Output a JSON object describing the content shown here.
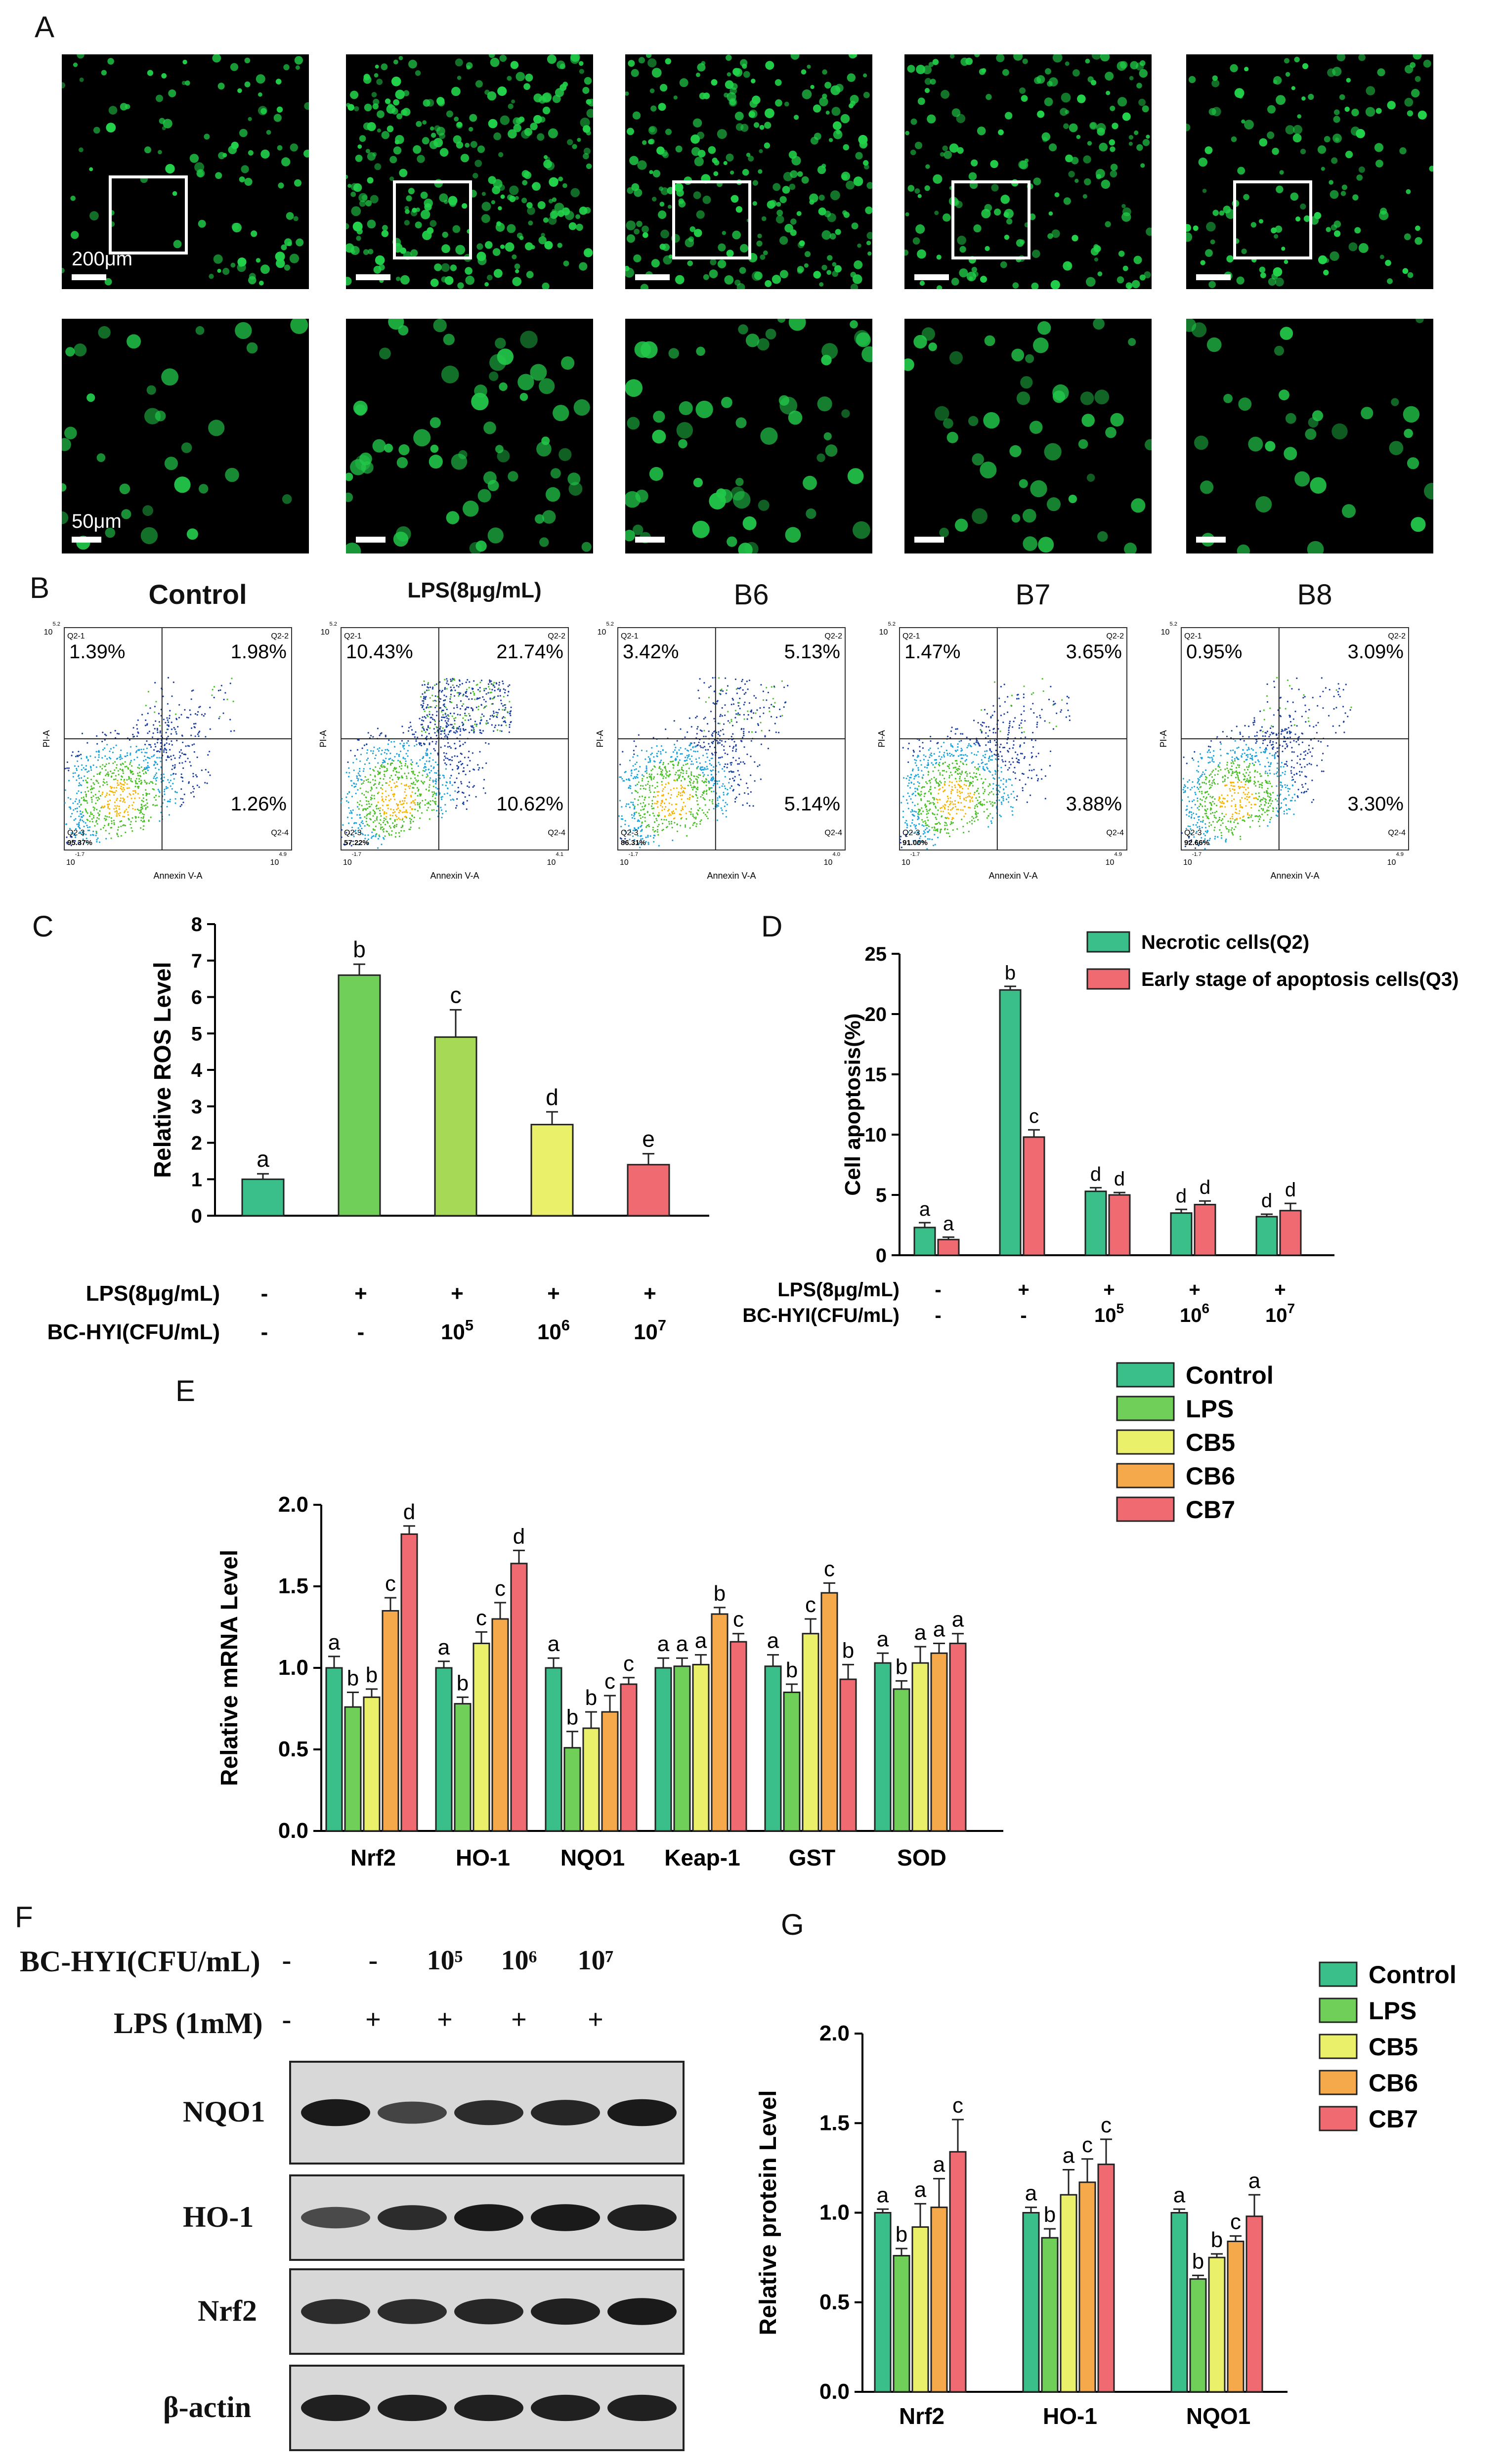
{
  "panels": {
    "A": "A",
    "B": "B",
    "C": "C",
    "D": "D",
    "E": "E",
    "F": "F",
    "G": "G"
  },
  "panelA": {
    "scale_top": "200μm",
    "scale_bottom": "50μm",
    "top_intensity": [
      0.25,
      1.0,
      0.85,
      0.6,
      0.4
    ],
    "bottom_intensity": [
      0.3,
      0.9,
      0.8,
      0.6,
      0.35
    ]
  },
  "panelB": {
    "titles": [
      "Control",
      "LPS(8μg/mL)",
      "B6",
      "B7",
      "B8"
    ],
    "quadrant_labels": {
      "q1": "Q2-1",
      "q2": "Q2-2",
      "q3": "Q2-3",
      "q4": "Q2-4"
    },
    "x_axis_label": "Annexin V-A",
    "y_axis_label": "PI-A",
    "plots": [
      {
        "q1": "1.39%",
        "q2": "1.98%",
        "q4": "1.26%",
        "q3": "95.37%",
        "xmax": "10^4.9",
        "ymax": "10^5.2"
      },
      {
        "q1": "10.43%",
        "q2": "21.74%",
        "q4": "10.62%",
        "q3": "57.22%",
        "xmax": "10^4.1",
        "ymax": "10^5.2"
      },
      {
        "q1": "3.42%",
        "q2": "5.13%",
        "q4": "5.14%",
        "q3": "86.31%",
        "xmax": "10^4.0",
        "ymax": "10^5.2"
      },
      {
        "q1": "1.47%",
        "q2": "3.65%",
        "q4": "3.88%",
        "q3": "91.00%",
        "xmax": "10^4.9",
        "ymax": "10^5.2"
      },
      {
        "q1": "0.95%",
        "q2": "3.09%",
        "q4": "3.30%",
        "q3": "92.66%",
        "xmax": "10^4.9",
        "ymax": "10^5.2"
      }
    ]
  },
  "chart_data": [
    {
      "id": "C",
      "type": "bar",
      "ylabel": "Relative ROS Level",
      "ylim": [
        0,
        8
      ],
      "yticks": [
        0,
        1,
        2,
        3,
        4,
        5,
        6,
        7,
        8
      ],
      "values": [
        1.0,
        6.6,
        4.9,
        2.5,
        1.4
      ],
      "errors": [
        0.15,
        0.3,
        0.75,
        0.35,
        0.3
      ],
      "letters": [
        "a",
        "b",
        "c",
        "d",
        "e"
      ],
      "colors": [
        "#3bbf8a",
        "#6fcf58",
        "#a6d955",
        "#eaf06a",
        "#f06a72"
      ],
      "row1_label": "LPS(8μg/mL)",
      "row1": [
        "-",
        "+",
        "+",
        "+",
        "+"
      ],
      "row2_label": "BC-HYI(CFU/mL)",
      "row2": [
        "-",
        "-",
        "10^5",
        "10^6",
        "10^7"
      ]
    },
    {
      "id": "D",
      "type": "bar",
      "ylabel": "Cell apoptosis(%)",
      "ylim": [
        0,
        25
      ],
      "yticks": [
        0,
        5,
        10,
        15,
        20,
        25
      ],
      "series": [
        {
          "name": "Necrotic  cells(Q2)",
          "color": "#3bbf8a",
          "values": [
            2.3,
            22.0,
            5.3,
            3.5,
            3.2
          ],
          "errors": [
            0.4,
            0.3,
            0.3,
            0.3,
            0.2
          ],
          "letters": [
            "a",
            "b",
            "d",
            "d",
            "d"
          ]
        },
        {
          "name": "Early stage of apoptosis cells(Q3)",
          "color": "#f06a72",
          "values": [
            1.3,
            9.8,
            5.0,
            4.2,
            3.7
          ],
          "errors": [
            0.2,
            0.6,
            0.2,
            0.3,
            0.6
          ],
          "letters": [
            "a",
            "c",
            "d",
            "d",
            "d"
          ]
        }
      ],
      "row1_label": "LPS(8μg/mL)",
      "row1": [
        "-",
        "+",
        "+",
        "+",
        "+"
      ],
      "row2_label": "BC-HYI(CFU/mL)",
      "row2": [
        "-",
        "-",
        "10^5",
        "10^6",
        "10^7"
      ]
    },
    {
      "id": "E",
      "type": "bar",
      "ylabel": "Relative mRNA Level",
      "ylim": [
        0,
        2.0
      ],
      "yticks": [
        "0.0",
        "0.5",
        "1.0",
        "1.5",
        "2.0"
      ],
      "categories": [
        "Nrf2",
        "HO-1",
        "NQO1",
        "Keap-1",
        "GST",
        "SOD"
      ],
      "series": [
        {
          "name": "Control",
          "color": "#3bbf8a",
          "values": [
            1.0,
            1.0,
            1.0,
            1.0,
            1.01,
            1.03
          ],
          "errors": [
            0.07,
            0.04,
            0.06,
            0.06,
            0.07,
            0.06
          ],
          "letters": [
            "a",
            "a",
            "a",
            "a",
            "a",
            "a"
          ]
        },
        {
          "name": "LPS",
          "color": "#6fcf58",
          "values": [
            0.76,
            0.78,
            0.51,
            1.01,
            0.85,
            0.87
          ],
          "errors": [
            0.09,
            0.04,
            0.1,
            0.05,
            0.05,
            0.05
          ],
          "letters": [
            "b",
            "b",
            "b",
            "a",
            "b",
            "b"
          ]
        },
        {
          "name": "CB5",
          "color": "#eaf06a",
          "values": [
            0.82,
            1.15,
            0.63,
            1.02,
            1.21,
            1.03
          ],
          "errors": [
            0.05,
            0.07,
            0.1,
            0.06,
            0.09,
            0.1
          ],
          "letters": [
            "b",
            "c",
            "b",
            "a",
            "c",
            "a"
          ]
        },
        {
          "name": "CB6",
          "color": "#f5a94a",
          "values": [
            1.35,
            1.3,
            0.73,
            1.33,
            1.46,
            1.09
          ],
          "errors": [
            0.08,
            0.1,
            0.1,
            0.04,
            0.06,
            0.06
          ],
          "letters": [
            "c",
            "c",
            "c",
            "b",
            "c",
            "a"
          ]
        },
        {
          "name": "CB7",
          "color": "#f06a72",
          "values": [
            1.82,
            1.64,
            0.9,
            1.16,
            0.93,
            1.15
          ],
          "errors": [
            0.05,
            0.08,
            0.04,
            0.05,
            0.09,
            0.06
          ],
          "letters": [
            "d",
            "d",
            "c",
            "c",
            "b",
            "a"
          ]
        }
      ]
    },
    {
      "id": "G",
      "type": "bar",
      "ylabel": "Relative protein Level",
      "ylim": [
        0,
        2.0
      ],
      "yticks": [
        "0.0",
        "0.5",
        "1.0",
        "1.5",
        "2.0"
      ],
      "categories": [
        "Nrf2",
        "HO-1",
        "NQO1"
      ],
      "series": [
        {
          "name": "Control",
          "color": "#3bbf8a",
          "values": [
            1.0,
            1.0,
            1.0
          ],
          "errors": [
            0.02,
            0.03,
            0.02
          ],
          "letters": [
            "a",
            "a",
            "a"
          ]
        },
        {
          "name": "LPS",
          "color": "#6fcf58",
          "values": [
            0.76,
            0.86,
            0.63
          ],
          "errors": [
            0.04,
            0.05,
            0.02
          ],
          "letters": [
            "b",
            "b",
            "b"
          ]
        },
        {
          "name": "CB5",
          "color": "#eaf06a",
          "values": [
            0.92,
            1.1,
            0.75
          ],
          "errors": [
            0.13,
            0.14,
            0.02
          ],
          "letters": [
            "a",
            "a",
            "b"
          ]
        },
        {
          "name": "CB6",
          "color": "#f5a94a",
          "values": [
            1.03,
            1.17,
            0.84
          ],
          "errors": [
            0.16,
            0.13,
            0.03
          ],
          "letters": [
            "a",
            "c",
            "c"
          ]
        },
        {
          "name": "CB7",
          "color": "#f06a72",
          "values": [
            1.34,
            1.27,
            0.98
          ],
          "errors": [
            0.18,
            0.14,
            0.12
          ],
          "letters": [
            "c",
            "c",
            "a"
          ]
        }
      ]
    }
  ],
  "panelF": {
    "row1_label": "BC-HYI(CFU/mL)",
    "row1": [
      "-",
      "-",
      "10⁵",
      "10⁶",
      "10⁷"
    ],
    "row2_label": "LPS (1mM)",
    "row2": [
      "-",
      "+",
      "+",
      "+",
      "+"
    ],
    "bands": [
      "NQO1",
      "HO-1",
      "Nrf2",
      "β-actin"
    ],
    "intensity": [
      [
        0.95,
        0.6,
        0.8,
        0.85,
        0.95
      ],
      [
        0.55,
        0.8,
        0.95,
        0.95,
        0.9
      ],
      [
        0.8,
        0.8,
        0.85,
        0.9,
        0.95
      ],
      [
        0.9,
        0.9,
        0.9,
        0.9,
        0.9
      ]
    ]
  }
}
